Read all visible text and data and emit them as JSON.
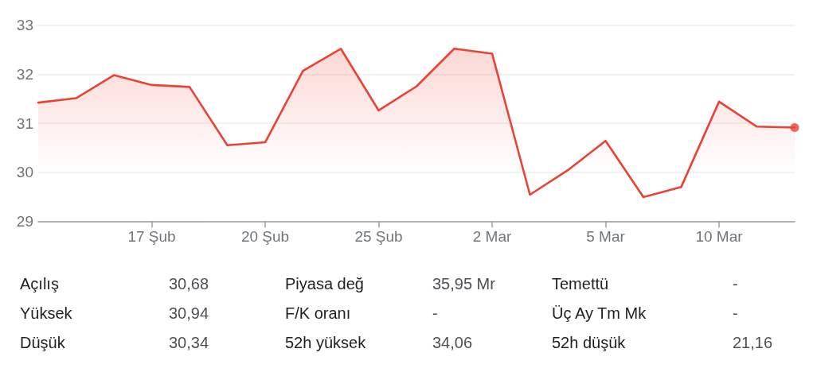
{
  "chart_data": [
    {
      "type": "area",
      "categories": [
        null,
        null,
        null,
        "17 Şub",
        null,
        null,
        "20 Şub",
        null,
        null,
        "25 Şub",
        null,
        null,
        "2 Mar",
        null,
        null,
        "5 Mar",
        null,
        null,
        "10 Mar",
        null,
        null
      ],
      "series": [
        {
          "color": "#ea4335",
          "values": [
            31.42,
            31.51,
            31.98,
            31.78,
            31.74,
            30.55,
            30.61,
            32.07,
            32.52,
            31.26,
            31.75,
            32.52,
            32.42,
            29.54,
            30.04,
            30.64,
            29.49,
            29.7,
            31.44,
            30.93,
            30.91
          ]
        },
        {
          "type": "scatter",
          "color": "#ea4335",
          "values": [
            null,
            null,
            null,
            null,
            null,
            null,
            null,
            null,
            null,
            null,
            null,
            null,
            null,
            null,
            null,
            null,
            null,
            null,
            null,
            null,
            30.91
          ]
        }
      ],
      "ylim": [
        29,
        33
      ],
      "yticks": [
        29,
        30,
        31,
        32,
        33
      ],
      "grid": "y"
    },
    {
      "type": "other",
      "annotations": [
        "Açılış",
        "30,68",
        "Piyasa değ",
        "35,95 Mr",
        "Temettü",
        "-",
        "Yüksek",
        "30,94",
        "F/K oranı",
        "-",
        "Üç Ay Tm Mk",
        "-",
        "Düşük",
        "30,34",
        "52h yüksek",
        "34,06",
        "52h düşük",
        "21,16"
      ]
    }
  ]
}
